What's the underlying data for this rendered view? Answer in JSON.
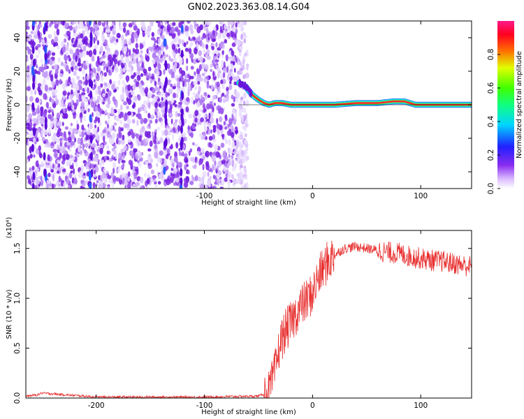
{
  "title": "GN02.2023.363.08.14.G04",
  "chart_data": [
    {
      "type": "heatmap",
      "xlabel": "Height of straight line (km)",
      "ylabel": "Frequency (Hz)",
      "xlim": [
        -265,
        147
      ],
      "ylim": [
        -50,
        50
      ],
      "x_ticks": [
        -200,
        -100,
        0,
        100
      ],
      "x_tick_labels": [
        "-200",
        "-100",
        "0",
        "100"
      ],
      "y_ticks": [
        -40,
        -20,
        0,
        20,
        40
      ],
      "y_tick_labels": [
        "-40",
        "-20",
        "0",
        "20",
        "40"
      ],
      "colorbar": {
        "label": "Normalized spectral amplitude",
        "range": [
          0,
          1
        ],
        "ticks": [
          0,
          0.2,
          0.4,
          0.6,
          0.8
        ],
        "tick_labels": [
          "0.0",
          "0.2",
          "0.4",
          "0.6",
          "0.8"
        ]
      },
      "noise_region_x": [
        -265,
        -60
      ],
      "signal_trace": {
        "x": [
          -68,
          -62,
          -56,
          -50,
          -45,
          -40,
          -35,
          -28,
          -20,
          0,
          20,
          40,
          60,
          75,
          85,
          95,
          120,
          147
        ],
        "y": [
          13,
          11,
          6,
          3,
          1,
          0,
          1,
          1,
          0,
          0,
          0,
          1,
          1,
          2,
          2,
          0,
          0,
          0
        ]
      }
    },
    {
      "type": "line",
      "xlabel": "Height of straight line (km)",
      "ylabel": "SNR (10 * v/v)",
      "y_multiplier_label": "(x10⁴)",
      "xlim": [
        -265,
        147
      ],
      "ylim": [
        0,
        1.68
      ],
      "x_ticks": [
        -200,
        -100,
        0,
        100
      ],
      "x_tick_labels": [
        "-200",
        "-100",
        "0",
        "100"
      ],
      "y_ticks": [
        0,
        0.5,
        1.0,
        1.5
      ],
      "y_tick_labels": [
        "0.0",
        "0.5",
        "1.0",
        "1.5"
      ],
      "series": [
        {
          "color": "#e83030",
          "x": [
            -265,
            -255,
            -250,
            -200,
            -100,
            -50,
            -40,
            -35,
            -30,
            -25,
            -20,
            -15,
            -10,
            -5,
            0,
            5,
            10,
            15,
            20,
            25,
            30,
            40,
            50,
            60,
            70,
            80,
            90,
            100,
            110,
            120,
            130,
            140,
            147
          ],
          "y": [
            0.02,
            0.03,
            0.05,
            0.01,
            0.01,
            0.02,
            0.06,
            0.25,
            0.55,
            0.68,
            0.75,
            0.85,
            0.93,
            0.98,
            1.05,
            1.2,
            1.3,
            1.38,
            1.43,
            1.47,
            1.5,
            1.52,
            1.5,
            1.48,
            1.46,
            1.45,
            1.42,
            1.4,
            1.38,
            1.37,
            1.35,
            1.33,
            1.32
          ]
        }
      ]
    }
  ]
}
